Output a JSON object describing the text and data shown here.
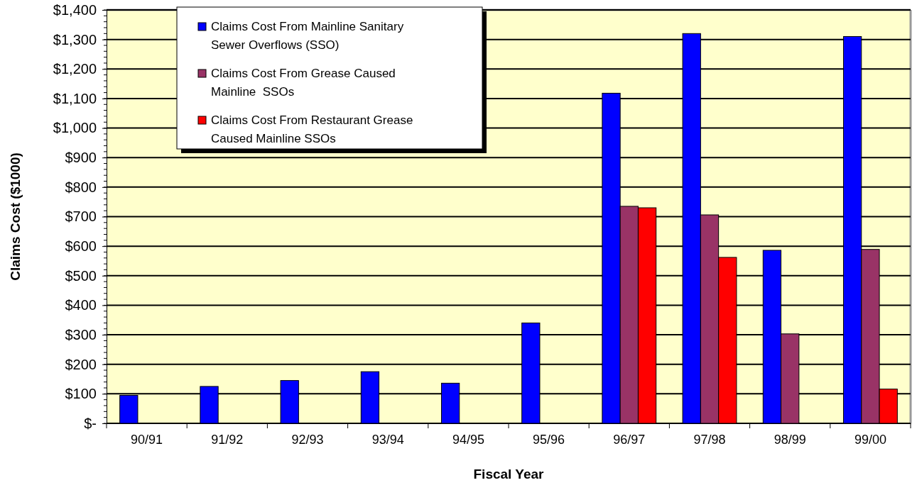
{
  "chart_data": {
    "type": "bar",
    "xlabel": "Fiscal Year",
    "ylabel": "Claims Cost  ($1000)",
    "categories": [
      "90/91",
      "91/92",
      "92/93",
      "93/94",
      "94/95",
      "95/96",
      "96/97",
      "97/98",
      "98/99",
      "99/00"
    ],
    "series": [
      {
        "name": "Claims Cost From Mainline Sanitary Sewer Overflows (SSO)",
        "color": "#0000ff",
        "values": [
          95,
          125,
          145,
          175,
          136,
          340,
          1118,
          1320,
          586,
          1310
        ]
      },
      {
        "name": "Claims Cost From Grease Caused Mainline  SSOs",
        "color": "#993366",
        "values": [
          null,
          null,
          null,
          null,
          null,
          null,
          735,
          706,
          303,
          589
        ]
      },
      {
        "name": "Claims Cost From Restaurant Grease Caused Mainline SSOs",
        "color": "#ff0000",
        "values": [
          null,
          null,
          null,
          null,
          null,
          null,
          730,
          562,
          null,
          116
        ]
      }
    ],
    "ylim": [
      0,
      1400
    ],
    "yticks": [
      {
        "value": 0,
        "label": "$-"
      },
      {
        "value": 100,
        "label": "$100"
      },
      {
        "value": 200,
        "label": "$200"
      },
      {
        "value": 300,
        "label": "$300"
      },
      {
        "value": 400,
        "label": "$400"
      },
      {
        "value": 500,
        "label": "$500"
      },
      {
        "value": 600,
        "label": "$600"
      },
      {
        "value": 700,
        "label": "$700"
      },
      {
        "value": 800,
        "label": "$800"
      },
      {
        "value": 900,
        "label": "$900"
      },
      {
        "value": 1000,
        "label": "$1,000"
      },
      {
        "value": 1100,
        "label": "$1,100"
      },
      {
        "value": 1200,
        "label": "$1,200"
      },
      {
        "value": 1300,
        "label": "$1,300"
      },
      {
        "value": 1400,
        "label": "$1,400"
      }
    ],
    "grid": "y",
    "legend": "top"
  }
}
